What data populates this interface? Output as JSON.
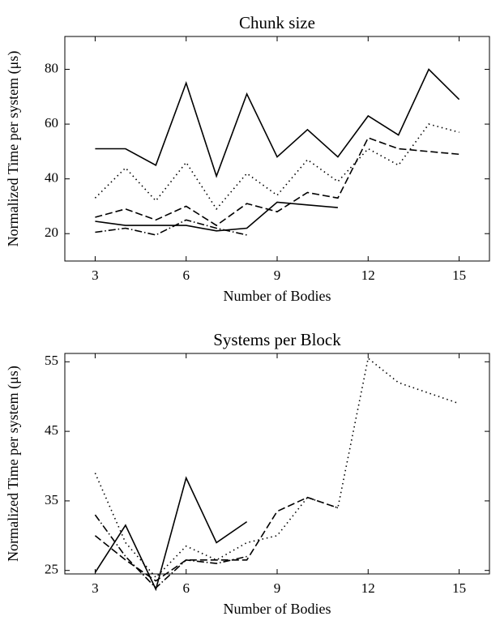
{
  "chart_data": [
    {
      "type": "line",
      "title": "Chunk size",
      "xlabel": "Number of Bodies",
      "ylabel": "Normalized Time per system (μs)",
      "x": [
        3,
        4,
        5,
        6,
        7,
        8,
        9,
        10,
        11,
        12,
        13,
        14,
        15
      ],
      "xlim": [
        2,
        16
      ],
      "xticks": [
        3,
        6,
        9,
        12,
        15
      ],
      "ylim": [
        10,
        92
      ],
      "yticks": [
        20,
        40,
        60,
        80
      ],
      "series": [
        {
          "color": "#000000",
          "linestyle": "solid",
          "values": [
            51,
            51,
            45,
            75,
            41,
            71,
            48,
            58,
            48,
            63,
            56,
            80,
            69
          ]
        },
        {
          "color": "#000000",
          "linestyle": "dotted",
          "values": [
            33,
            44,
            32,
            46,
            29,
            42,
            34,
            47,
            39,
            51,
            45,
            60,
            57
          ]
        },
        {
          "color": "#000000",
          "linestyle": "dashed",
          "values": [
            26,
            29,
            25,
            30,
            23,
            31,
            28,
            35,
            33,
            55,
            51,
            50,
            49
          ]
        },
        {
          "color": "#000000",
          "linestyle": "dashdot",
          "values": [
            20.5,
            22,
            19.5,
            25,
            22,
            19.5,
            null,
            null,
            null,
            null,
            null,
            null,
            null
          ]
        },
        {
          "color": "#000000",
          "linestyle": "solid",
          "values": [
            24.5,
            23,
            23,
            23,
            21,
            22,
            31.5,
            30.5,
            29.5,
            null,
            null,
            null,
            null
          ]
        }
      ]
    },
    {
      "type": "line",
      "title": "Systems per Block",
      "xlabel": "Number of Bodies",
      "ylabel": "Normalized Time per system (μs)",
      "x": [
        3,
        4,
        5,
        6,
        7,
        8,
        9,
        10,
        11,
        12,
        13,
        14,
        15
      ],
      "xlim": [
        2,
        16
      ],
      "xticks": [
        3,
        6,
        9,
        12,
        15
      ],
      "ylim": [
        24.5,
        56.2
      ],
      "yticks": [
        25,
        35,
        45,
        55
      ],
      "series": [
        {
          "color": "#000000",
          "linestyle": "solid",
          "values": [
            24.7,
            31.5,
            22.3,
            38.3,
            29,
            32,
            null,
            null,
            null,
            null,
            null,
            null,
            null
          ]
        },
        {
          "color": "#000000",
          "linestyle": "dotted",
          "values": [
            39,
            29,
            24,
            28.5,
            26.5,
            29,
            30,
            35.5,
            34,
            55.5,
            52,
            50.5,
            49
          ]
        },
        {
          "color": "#000000",
          "linestyle": "dashed",
          "values": [
            30,
            26.5,
            23.5,
            26.5,
            26.5,
            26.5,
            33.5,
            35.5,
            34,
            null,
            null,
            null,
            null
          ]
        },
        {
          "color": "#000000",
          "linestyle": "dashdot",
          "values": [
            33,
            27,
            22.5,
            26.5,
            26,
            27,
            null,
            null,
            null,
            null,
            null,
            null,
            null
          ]
        }
      ]
    }
  ]
}
